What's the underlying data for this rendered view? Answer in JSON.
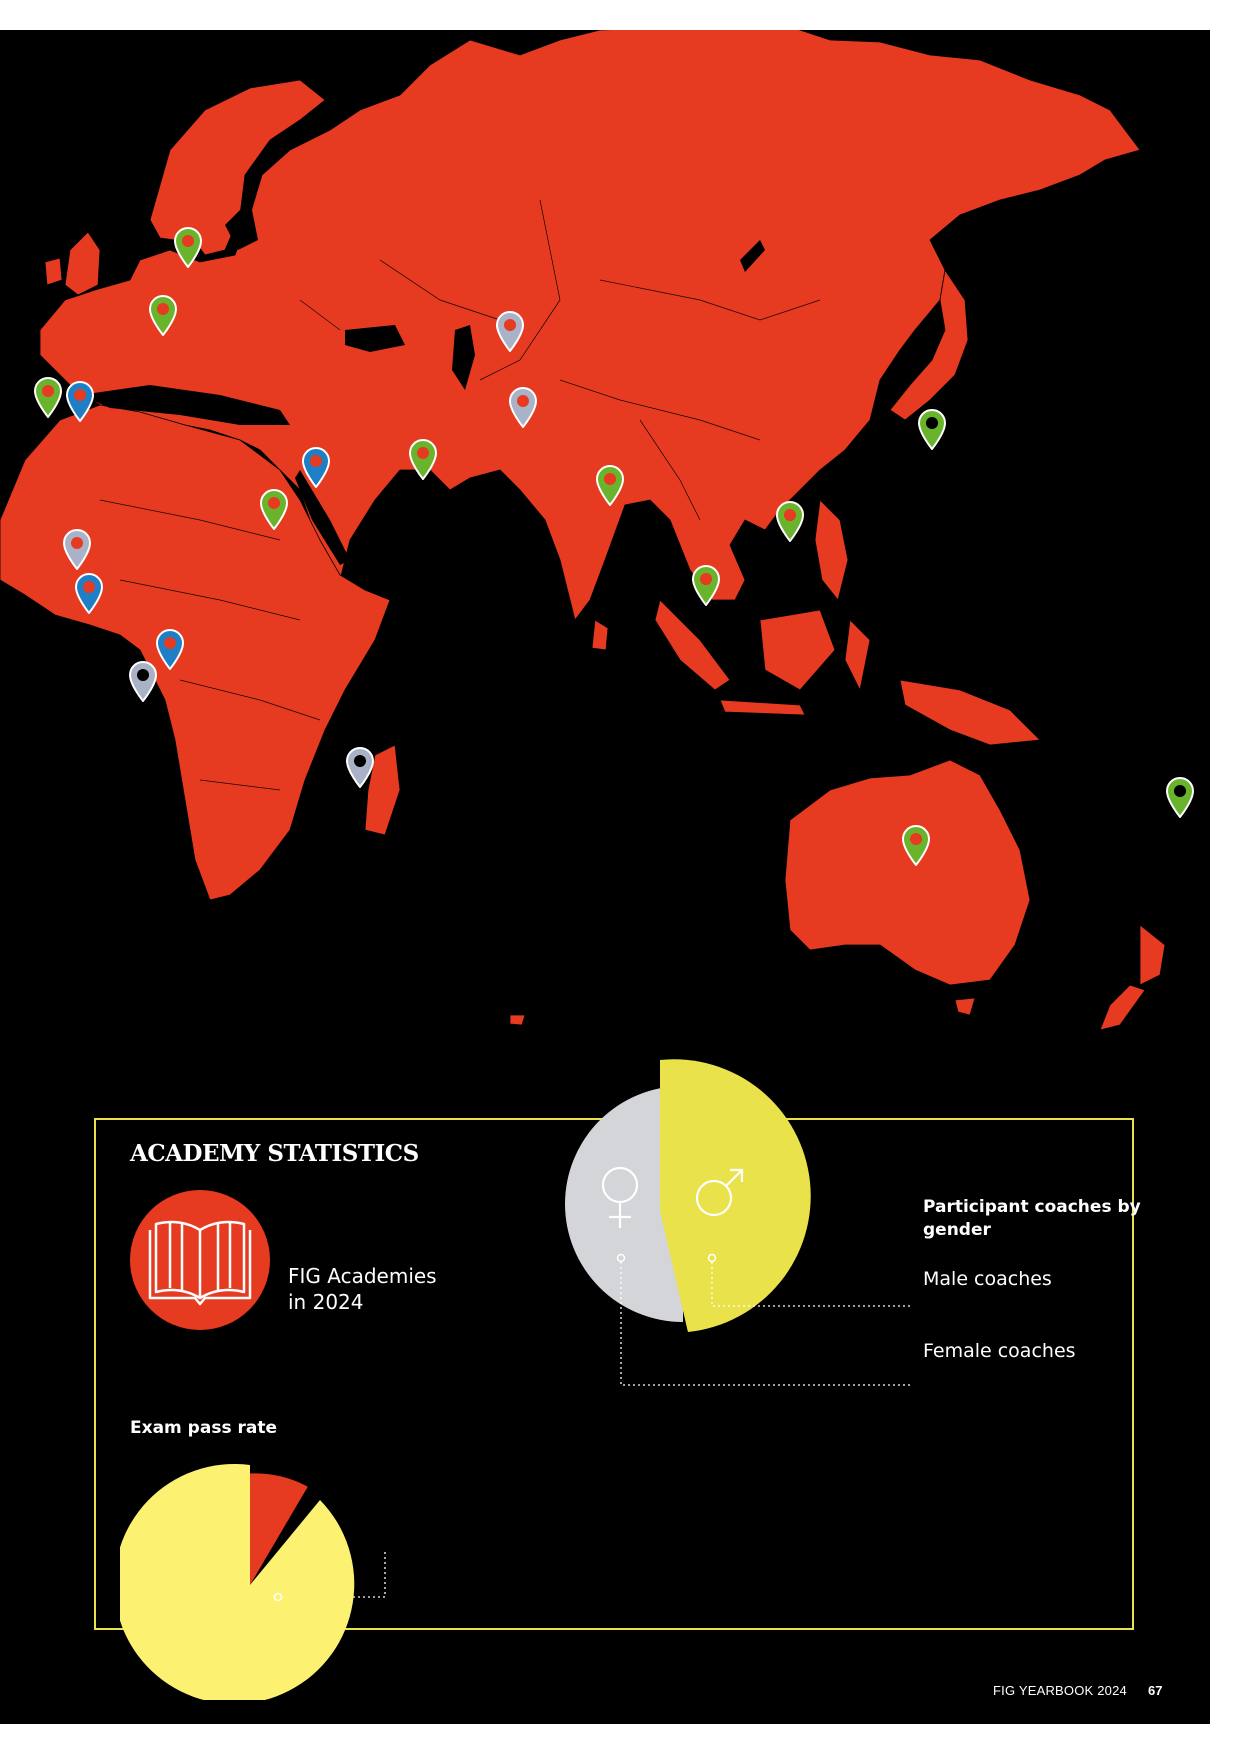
{
  "stats": {
    "heading": "ACADEMY STATISTICS",
    "academies_label": "FIG Academies\nin 2024",
    "gender_title": "Participant coaches by gender",
    "male_label": "Male coaches",
    "female_label": "Female coaches",
    "exam_title": "Exam pass rate"
  },
  "footer": {
    "title": "FIG YEARBOOK 2024",
    "page": "67"
  },
  "colors": {
    "land": "#e63a21",
    "background": "#000000",
    "accent_yellow": "#e9e24a",
    "pin_green": "#6ab42d",
    "pin_blue": "#1f7fc6",
    "pin_grey": "#aab2c8"
  },
  "icons": [
    "location-pin-icon",
    "open-book-icon",
    "female-symbol-icon",
    "male-symbol-icon"
  ]
}
